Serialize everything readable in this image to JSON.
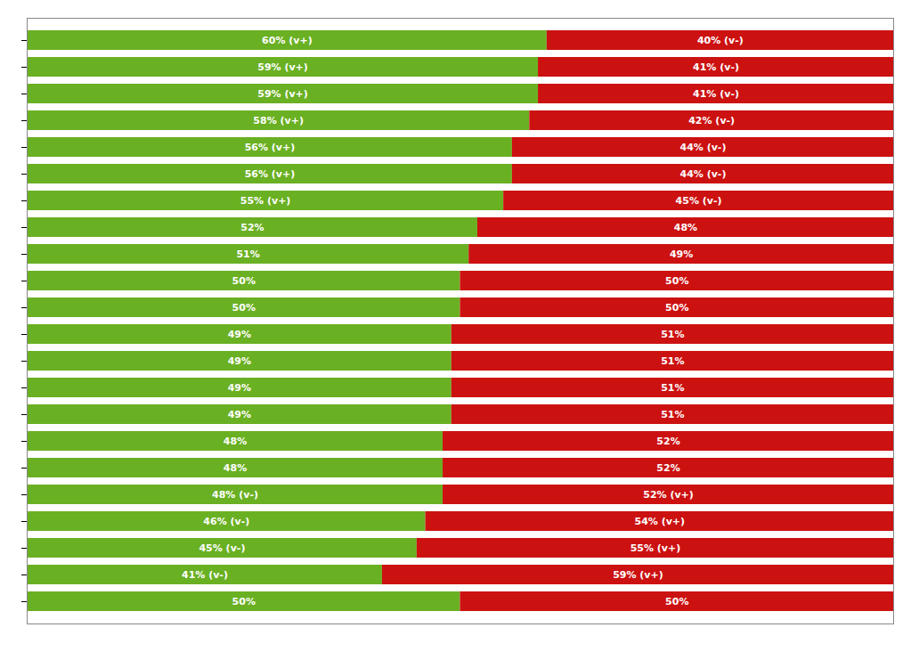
{
  "chart_data": {
    "type": "bar",
    "orientation": "horizontal",
    "stacked": true,
    "data_labels": true,
    "tick_labels": false,
    "categories": [
      null,
      null,
      null,
      null,
      null,
      null,
      null,
      null,
      null,
      null,
      null,
      null,
      null,
      null,
      null,
      null,
      null,
      null,
      null,
      null,
      null,
      null
    ],
    "xlim": [
      0,
      100
    ],
    "xticks": [],
    "series": [
      {
        "color": "#6ab023",
        "values": [
          60,
          59,
          59,
          58,
          56,
          56,
          55,
          52,
          51,
          50,
          50,
          49,
          49,
          49,
          49,
          48,
          48,
          48,
          46,
          45,
          41,
          50
        ],
        "value_labels": [
          "60% (v+)",
          "59% (v+)",
          "59% (v+)",
          "58% (v+)",
          "56% (v+)",
          "56% (v+)",
          "55% (v+)",
          "52%",
          "51%",
          "50%",
          "50%",
          "49%",
          "49%",
          "49%",
          "49%",
          "48%",
          "48%",
          "48% (v-)",
          "46% (v-)",
          "45% (v-)",
          "41% (v-)",
          "50%"
        ]
      },
      {
        "color": "#cc1111",
        "values": [
          40,
          41,
          41,
          42,
          44,
          44,
          45,
          48,
          49,
          50,
          50,
          51,
          51,
          51,
          51,
          52,
          52,
          52,
          54,
          55,
          59,
          50
        ],
        "value_labels": [
          "40% (v-)",
          "41% (v-)",
          "41% (v-)",
          "42% (v-)",
          "44% (v-)",
          "44% (v-)",
          "45% (v-)",
          "48%",
          "49%",
          "50%",
          "50%",
          "51%",
          "51%",
          "51%",
          "51%",
          "52%",
          "52%",
          "52% (v+)",
          "54% (v+)",
          "55% (v+)",
          "59% (v+)",
          "50%"
        ]
      }
    ]
  }
}
